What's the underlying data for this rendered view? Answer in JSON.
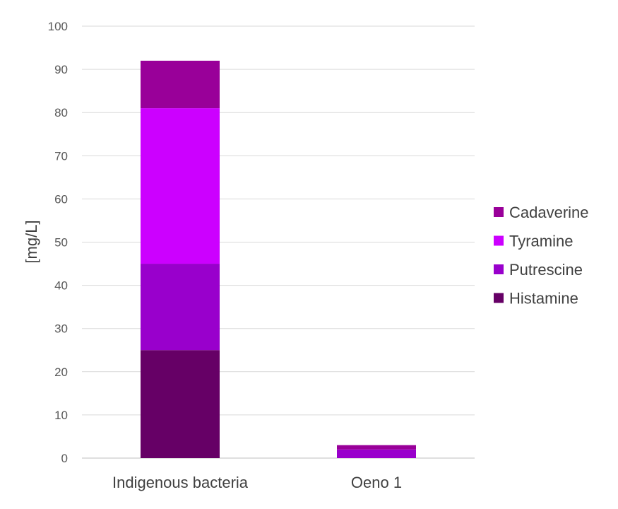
{
  "chart_data": {
    "type": "bar",
    "stacked": true,
    "categories": [
      "Indigenous bacteria",
      "Oeno 1"
    ],
    "series": [
      {
        "name": "Histamine",
        "values": [
          25,
          0
        ],
        "color": "#660066"
      },
      {
        "name": "Putrescine",
        "values": [
          20,
          2
        ],
        "color": "#9900cc"
      },
      {
        "name": "Tyramine",
        "values": [
          36,
          0
        ],
        "color": "#cc00ff"
      },
      {
        "name": "Cadaverine",
        "values": [
          11,
          1
        ],
        "color": "#990099"
      }
    ],
    "ylabel": "[mg/L]",
    "xlabel": "",
    "ylim": [
      0,
      100
    ],
    "yticks": [
      0,
      10,
      20,
      30,
      40,
      50,
      60,
      70,
      80,
      90,
      100
    ],
    "grid": true,
    "legend": {
      "placement": "right",
      "order": [
        "Cadaverine",
        "Tyramine",
        "Putrescine",
        "Histamine"
      ]
    }
  }
}
